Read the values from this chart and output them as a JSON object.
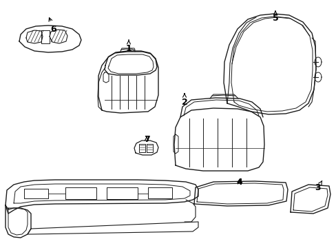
{
  "background_color": "#ffffff",
  "line_color": "#1a1a1a",
  "line_width": 1.0,
  "fig_width": 4.89,
  "fig_height": 3.6,
  "dpi": 100
}
